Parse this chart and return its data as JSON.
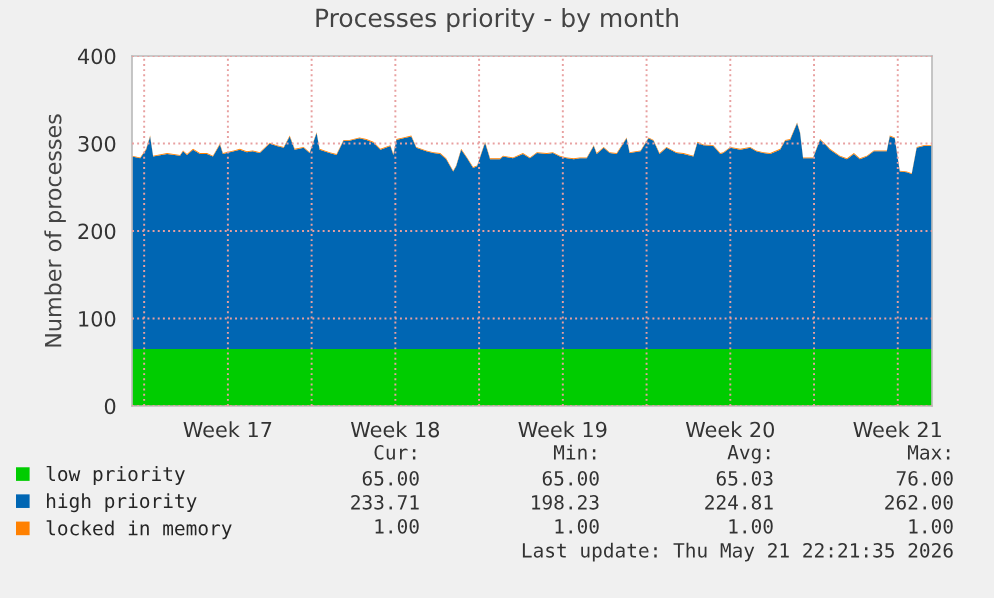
{
  "chart_data": {
    "type": "area",
    "stacked": true,
    "title": "Processes priority - by month",
    "ylabel": "Number of processes",
    "x": [
      "2026-04-18T11:48",
      "2026-04-18T20:00",
      "2026-04-19T02:00",
      "2026-04-19T06:00",
      "2026-04-19T09:00",
      "2026-04-19T23:00",
      "2026-04-20T12:00",
      "2026-04-20T15:00",
      "2026-04-20T19:00",
      "2026-04-21T01:00",
      "2026-04-21T08:00",
      "2026-04-21T15:00",
      "2026-04-21T21:00",
      "2026-04-22T04:00",
      "2026-04-22T07:00",
      "2026-04-22T18:00",
      "2026-04-23T00:00",
      "2026-04-23T07:00",
      "2026-04-23T13:00",
      "2026-04-23T20:00",
      "2026-04-24T06:00",
      "2026-04-24T13:00",
      "2026-04-24T20:00",
      "2026-04-25T02:00",
      "2026-04-25T07:00",
      "2026-04-25T16:00",
      "2026-04-25T22:00",
      "2026-04-26T05:00",
      "2026-04-26T08:00",
      "2026-04-26T18:00",
      "2026-04-27T01:00",
      "2026-04-27T08:00",
      "2026-04-27T14:00",
      "2026-04-28T00:00",
      "2026-04-28T07:00",
      "2026-04-28T14:00",
      "2026-04-28T21:00",
      "2026-04-29T07:00",
      "2026-04-29T10:00",
      "2026-04-29T13:00",
      "2026-04-29T20:00",
      "2026-04-30T04:00",
      "2026-04-30T09:00",
      "2026-04-30T19:00",
      "2026-05-01T02:00",
      "2026-05-01T09:00",
      "2026-05-01T15:00",
      "2026-05-01T22:00",
      "2026-05-02T01:00",
      "2026-05-02T06:00",
      "2026-05-02T12:00",
      "2026-05-02T18:00",
      "2026-05-02T22:00",
      "2026-05-03T06:00",
      "2026-05-03T11:00",
      "2026-05-03T21:00",
      "2026-05-04T00:00",
      "2026-05-04T10:00",
      "2026-05-04T20:00",
      "2026-05-05T03:00",
      "2026-05-05T10:00",
      "2026-05-05T20:00",
      "2026-05-06T02:00",
      "2026-05-06T09:00",
      "2026-05-06T16:00",
      "2026-05-06T23:00",
      "2026-05-07T05:00",
      "2026-05-07T12:00",
      "2026-05-07T19:00",
      "2026-05-07T22:00",
      "2026-05-08T05:00",
      "2026-05-08T11:00",
      "2026-05-08T18:00",
      "2026-05-09T04:00",
      "2026-05-09T07:00",
      "2026-05-09T18:00",
      "2026-05-10T02:00",
      "2026-05-10T07:00",
      "2026-05-10T13:00",
      "2026-05-10T20:00",
      "2026-05-11T06:00",
      "2026-05-11T13:00",
      "2026-05-11T23:00",
      "2026-05-12T03:00",
      "2026-05-12T09:00",
      "2026-05-12T19:00",
      "2026-05-13T02:00",
      "2026-05-13T05:00",
      "2026-05-13T12:00",
      "2026-05-13T22:00",
      "2026-05-14T08:00",
      "2026-05-14T14:00",
      "2026-05-14T21:00",
      "2026-05-15T04:00",
      "2026-05-15T14:00",
      "2026-05-15T19:00",
      "2026-05-16T00:00",
      "2026-05-16T07:00",
      "2026-05-16T10:00",
      "2026-05-16T13:00",
      "2026-05-16T23:00",
      "2026-05-17T06:00",
      "2026-05-17T12:00",
      "2026-05-17T16:00",
      "2026-05-18T02:00",
      "2026-05-18T09:00",
      "2026-05-18T16:00",
      "2026-05-18T22:00",
      "2026-05-19T05:00",
      "2026-05-19T12:00",
      "2026-05-19T18:00",
      "2026-05-20T01:00",
      "2026-05-20T04:00",
      "2026-05-20T09:00",
      "2026-05-20T14:00",
      "2026-05-20T21:00",
      "2026-05-21T02:00",
      "2026-05-21T07:00",
      "2026-05-21T14:00",
      "2026-05-21T22:21"
    ],
    "series": [
      {
        "name": "low priority",
        "color": "#00cc00",
        "values": [
          65,
          65,
          65,
          65,
          65,
          65,
          65,
          65,
          65,
          65,
          65,
          65,
          65,
          65,
          65,
          65,
          65,
          65,
          65,
          65,
          65,
          65,
          65,
          65,
          65,
          65,
          65,
          65,
          65,
          65,
          65,
          65,
          65,
          65,
          65,
          65,
          65,
          65,
          65,
          65,
          65,
          65,
          65,
          65,
          65,
          65,
          65,
          65,
          65,
          65,
          65,
          65,
          65,
          65,
          65,
          65,
          65,
          65,
          65,
          65,
          65,
          65,
          65,
          65,
          65,
          65,
          65,
          65,
          65,
          65,
          65,
          65,
          65,
          65,
          65,
          65,
          65,
          65,
          65,
          65,
          65,
          65,
          65,
          65,
          65,
          65,
          65,
          65,
          65,
          65,
          65,
          65,
          65,
          65,
          65,
          65,
          65,
          65,
          65,
          65,
          65,
          65,
          65,
          65,
          65,
          65,
          65,
          65,
          65,
          65,
          65,
          65,
          65,
          65,
          65,
          65,
          65,
          65,
          65,
          65
        ]
      },
      {
        "name": "high priority",
        "color": "#0066b3",
        "values": [
          220,
          218,
          228,
          243,
          220,
          223,
          221,
          226,
          222,
          228,
          223,
          223,
          220,
          234,
          223,
          226,
          228,
          225,
          226,
          224,
          235,
          232,
          230,
          243,
          228,
          230,
          224,
          247,
          228,
          224,
          222,
          238,
          238,
          241,
          239,
          236,
          228,
          232,
          222,
          239,
          241,
          243,
          230,
          226,
          224,
          223,
          217,
          203,
          209,
          228,
          218,
          207,
          209,
          236,
          217,
          217,
          220,
          218,
          223,
          218,
          224,
          223,
          224,
          220,
          218,
          217,
          218,
          218,
          232,
          223,
          230,
          224,
          223,
          241,
          224,
          226,
          241,
          238,
          223,
          230,
          224,
          223,
          220,
          236,
          233,
          232,
          223,
          224,
          230,
          228,
          230,
          226,
          224,
          223,
          228,
          238,
          239,
          258,
          247,
          218,
          218,
          239,
          233,
          228,
          220,
          217,
          223,
          217,
          220,
          226,
          226,
          226,
          243,
          241,
          203,
          202,
          200,
          230,
          232,
          232
        ]
      },
      {
        "name": "locked in memory",
        "color": "#ff8000",
        "values": [
          1,
          1,
          1,
          1,
          1,
          1,
          1,
          1,
          1,
          1,
          1,
          1,
          1,
          1,
          1,
          1,
          1,
          1,
          1,
          1,
          1,
          1,
          1,
          1,
          1,
          1,
          1,
          1,
          1,
          1,
          1,
          1,
          1,
          1,
          1,
          1,
          1,
          1,
          1,
          1,
          1,
          1,
          1,
          1,
          1,
          1,
          1,
          1,
          1,
          1,
          1,
          1,
          1,
          1,
          1,
          1,
          1,
          1,
          1,
          1,
          1,
          1,
          1,
          1,
          1,
          1,
          1,
          1,
          1,
          1,
          1,
          1,
          1,
          1,
          1,
          1,
          1,
          1,
          1,
          1,
          1,
          1,
          1,
          1,
          1,
          1,
          1,
          1,
          1,
          1,
          1,
          1,
          1,
          1,
          1,
          1,
          1,
          1,
          1,
          1,
          1,
          1,
          1,
          1,
          1,
          1,
          1,
          1,
          1,
          1,
          1,
          1,
          1,
          1,
          1,
          1,
          1,
          1,
          1,
          1
        ]
      }
    ],
    "xlim": [
      "2026-04-18T11:48",
      "2026-05-21T22:21"
    ],
    "ylim": [
      0,
      400
    ],
    "yticks": [
      0,
      100,
      200,
      300,
      400
    ],
    "xticks": [
      {
        "value": "2026-04-19T00:00",
        "label": null
      },
      {
        "value": "2026-04-22T12:00",
        "label": "Week 17"
      },
      {
        "value": "2026-04-26T00:00",
        "label": null
      },
      {
        "value": "2026-04-29T12:00",
        "label": "Week 18"
      },
      {
        "value": "2026-05-03T00:00",
        "label": null
      },
      {
        "value": "2026-05-06T12:00",
        "label": "Week 19"
      },
      {
        "value": "2026-05-10T00:00",
        "label": null
      },
      {
        "value": "2026-05-13T12:00",
        "label": "Week 20"
      },
      {
        "value": "2026-05-17T00:00",
        "label": null
      },
      {
        "value": "2026-05-20T12:00",
        "label": "Week 21"
      }
    ],
    "grid": true,
    "legend": "bottom",
    "annotations": [
      "Cur:",
      "Min:",
      "Avg:",
      "Max:",
      "65.00",
      "65.00",
      "65.03",
      "76.00",
      "233.71",
      "198.23",
      "224.81",
      "262.00",
      "1.00",
      "1.00",
      "1.00",
      "1.00",
      "Last update: Thu May 21 22:21:35 2026"
    ]
  }
}
